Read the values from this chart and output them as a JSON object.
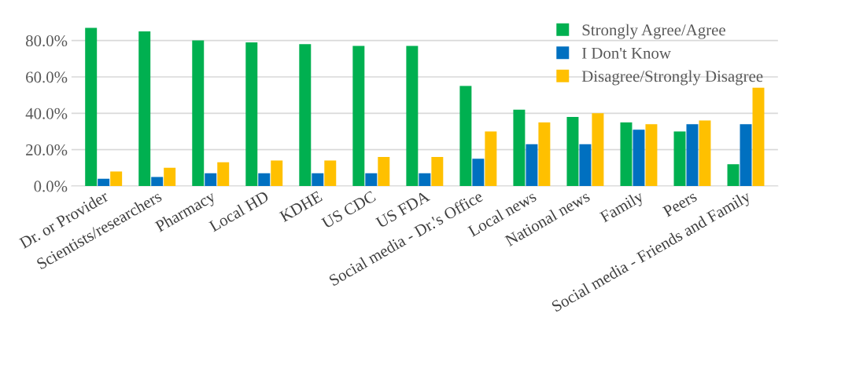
{
  "chart_data": {
    "type": "bar",
    "categories": [
      "Dr. or Provider",
      "Scientists/researchers",
      "Pharmacy",
      "Local HD",
      "KDHE",
      "US CDC",
      "US FDA",
      "Social media - Dr.'s Office",
      "Local news",
      "National news",
      "Family",
      "Peers",
      "Social media - Friends and Family"
    ],
    "series": [
      {
        "name": "Strongly Agree/Agree",
        "color": "#00b050",
        "values": [
          87,
          85,
          80,
          79,
          78,
          77,
          77,
          55,
          42,
          38,
          35,
          30,
          12
        ]
      },
      {
        "name": "I Don't Know",
        "color": "#0070c0",
        "values": [
          4,
          5,
          7,
          7,
          7,
          7,
          7,
          15,
          23,
          23,
          31,
          34,
          34
        ]
      },
      {
        "name": "Disagree/Strongly Disagree",
        "color": "#ffc000",
        "values": [
          8,
          10,
          13,
          14,
          14,
          16,
          16,
          30,
          35,
          40,
          34,
          36,
          54
        ]
      }
    ],
    "ylim": [
      0,
      90
    ],
    "yticks": [
      {
        "value": 0,
        "label": "0.0%"
      },
      {
        "value": 20,
        "label": "20.0%"
      },
      {
        "value": 40,
        "label": "40.0%"
      },
      {
        "value": 60,
        "label": "60.0%"
      },
      {
        "value": 80,
        "label": "80.0%"
      }
    ],
    "grid": "y",
    "legend": "top right"
  }
}
